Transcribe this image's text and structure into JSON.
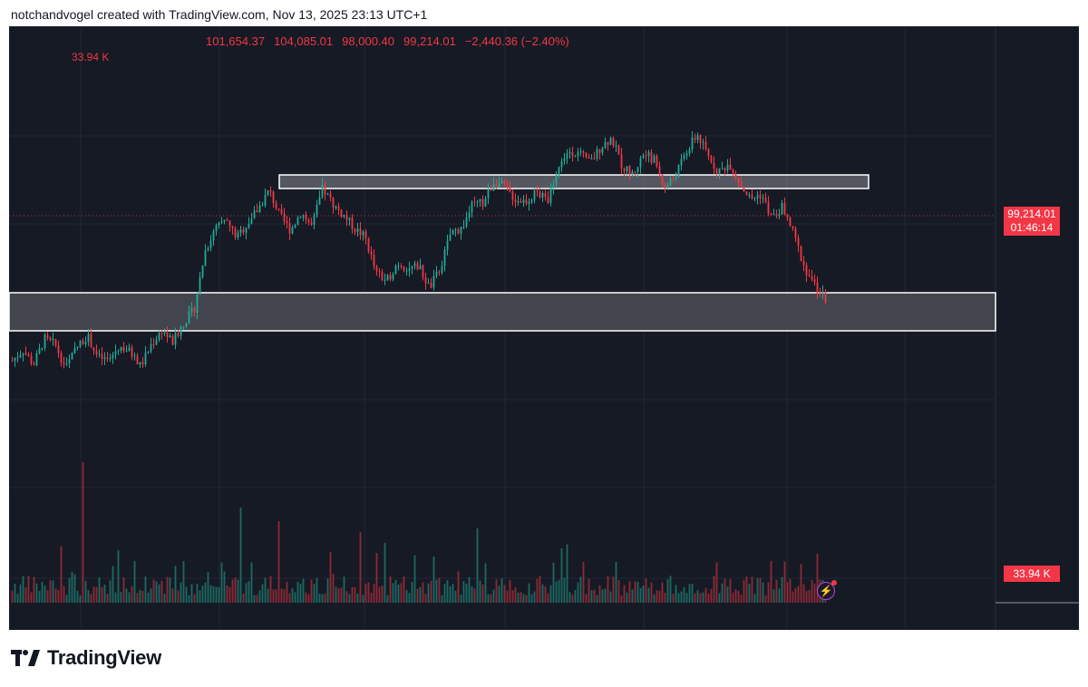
{
  "header": {
    "attribution": "notchandvogel created with TradingView.com, Nov 13, 2025 23:13 UTC+1"
  },
  "ohlc": {
    "open": "101,654.37",
    "high": "104,085.01",
    "low": "98,000.40",
    "close": "99,214.01",
    "change": "−2,440.36 (−2.40%)"
  },
  "volume": {
    "label": "33.94 K",
    "badge": "33.94 K"
  },
  "price_badge": {
    "price": "99,214.01",
    "countdown": "01:46:14"
  },
  "footer": {
    "brand": "TradingView"
  },
  "colors": {
    "up": "#22ab94",
    "down": "#f23645",
    "background": "#161a25",
    "zone": "#4a4d55"
  },
  "icons": {
    "alert": "lightning-icon",
    "logo": "tradingview-logo-icon"
  },
  "chart_data": {
    "type": "candlestick",
    "last_price": 99214.01,
    "price_points": [
      95800,
      96400,
      95600,
      97000,
      96700,
      95400,
      96500,
      97200,
      96000,
      95800,
      96600,
      96300,
      95500,
      96700,
      97500,
      96800,
      97900,
      98600,
      101800,
      103100,
      103500,
      102600,
      103400,
      104200,
      105200,
      103800,
      103000,
      104000,
      103200,
      105300,
      104400,
      103800,
      103100,
      102600,
      100600,
      100200,
      101200,
      100900,
      101000,
      99800,
      100900,
      102900,
      103100,
      104400,
      104500,
      105700,
      105400,
      104700,
      104600,
      105100,
      104600,
      106400,
      107400,
      107200,
      106700,
      107600,
      108100,
      106500,
      106100,
      107200,
      106900,
      105300,
      106100,
      107300,
      108300,
      107100,
      106200,
      106700,
      105600,
      104700,
      105000,
      103600,
      104300,
      102800,
      101000,
      99900,
      99200
    ],
    "zones": [
      {
        "name": "upper-resistance",
        "top": 106000,
        "bottom": 105200
      },
      {
        "name": "lower-support",
        "top": 100000,
        "bottom": 97900
      }
    ]
  }
}
